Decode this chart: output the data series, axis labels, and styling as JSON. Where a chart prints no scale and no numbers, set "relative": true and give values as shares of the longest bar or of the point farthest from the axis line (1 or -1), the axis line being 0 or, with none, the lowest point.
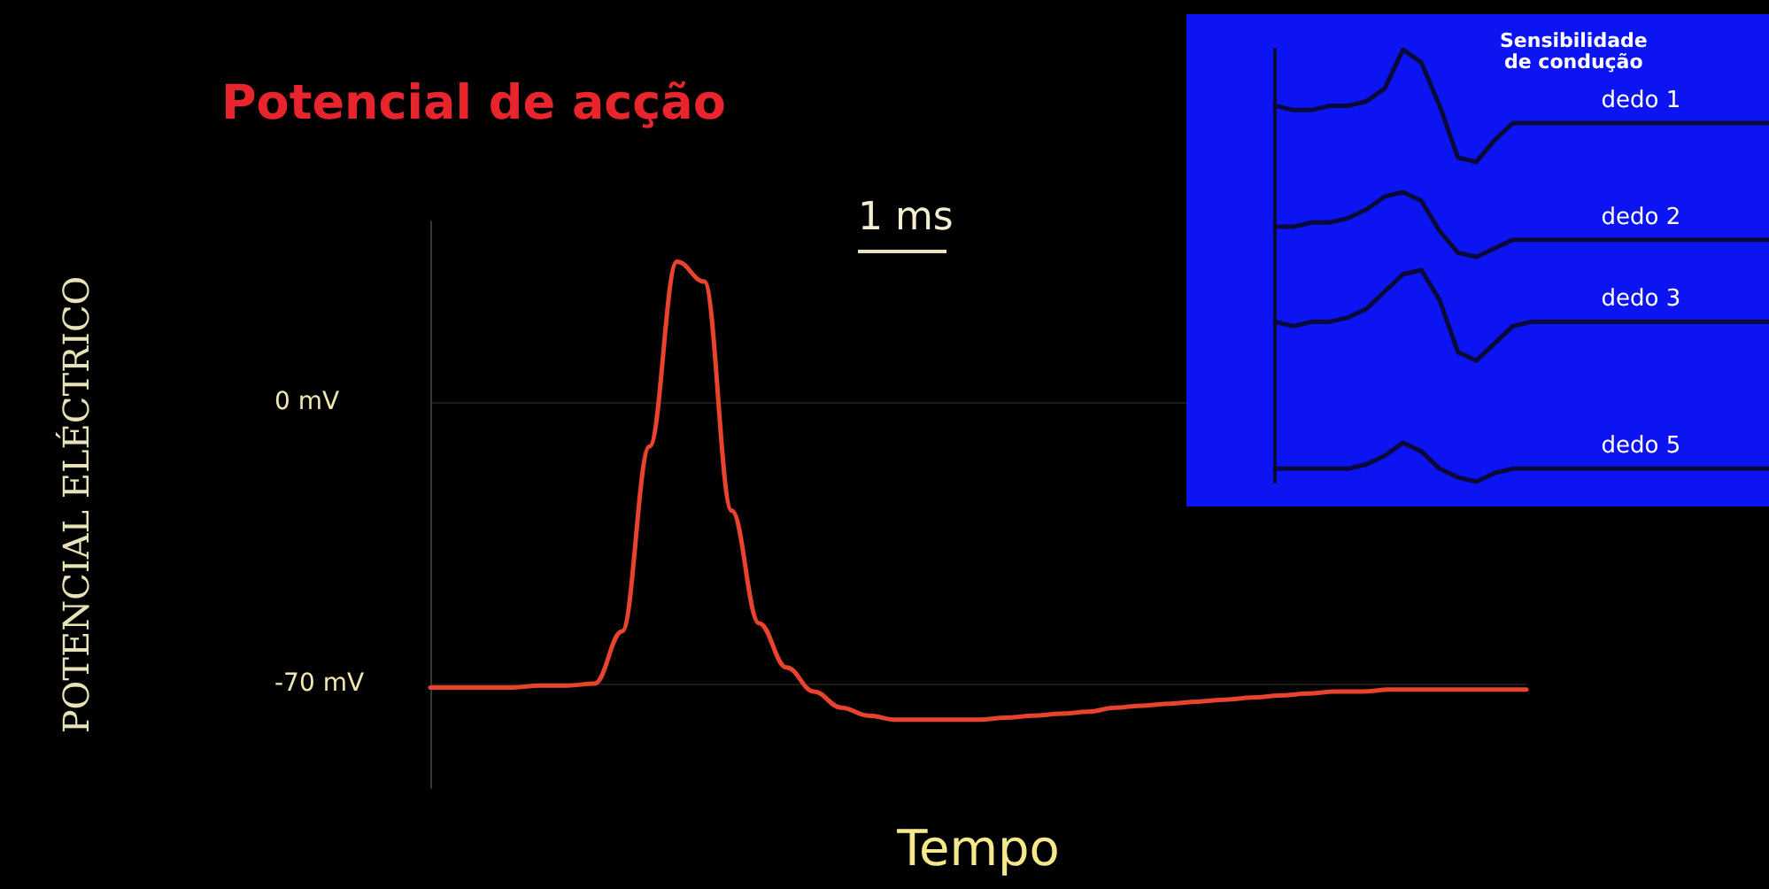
{
  "chart_data": [
    {
      "type": "line",
      "title": "Potencial de acção",
      "xlabel": "Tempo",
      "ylabel": "POTENCIAL ELÉCTRICO",
      "annotations": [
        "1 ms"
      ],
      "categories": [
        null,
        null,
        null,
        null,
        null,
        null,
        null,
        null,
        null,
        null,
        null,
        null,
        null,
        null,
        null,
        null,
        null,
        null,
        null,
        null,
        null,
        null,
        null,
        null,
        null,
        null,
        null,
        null,
        null,
        null,
        null,
        null,
        null,
        null,
        null,
        null,
        null,
        null,
        null,
        null,
        null
      ],
      "series": [
        {
          "color": "#e8432f",
          "values": [
            -71,
            -71,
            -71,
            -71,
            -70.5,
            -70.5,
            -70,
            -57,
            -11,
            35,
            30,
            -27,
            -55,
            -66,
            -72,
            -76,
            -78,
            -79,
            -79,
            -79,
            -79,
            -78.5,
            -78,
            -77.5,
            -77,
            -76,
            -75.5,
            -75,
            -74.5,
            -74,
            -73.5,
            -73,
            -72.5,
            -72,
            -72,
            -71.5,
            -71.5,
            -71.5,
            -71.5,
            -71.5,
            -71.5
          ]
        }
      ],
      "ylim": [
        -96,
        45
      ],
      "yticks": [
        {
          "value": 0,
          "label": "0 mV"
        },
        {
          "value": -70,
          "label": "-70 mV"
        }
      ],
      "grid": "y"
    },
    {
      "type": "line",
      "relative": true,
      "title": "Sensibilidade\nde condução",
      "categories": [
        null,
        null,
        null,
        null,
        null,
        null,
        null,
        null,
        null,
        null,
        null,
        null,
        null,
        null,
        null,
        null,
        null,
        null,
        null,
        null,
        null,
        null,
        null,
        null,
        null,
        null,
        null,
        null
      ],
      "series": [
        {
          "name": "dedo 1",
          "color": "#0a0a3a",
          "values": [
            0.87,
            0.86,
            0.86,
            0.87,
            0.87,
            0.88,
            0.91,
            1,
            0.97,
            0.87,
            0.75,
            0.74,
            0.79,
            0.83,
            0.83,
            0.83,
            0.83,
            0.83,
            0.83,
            0.83,
            0.83,
            0.83,
            0.83,
            0.83,
            0.83,
            0.83,
            0.83,
            0.83
          ]
        },
        {
          "name": "dedo 2",
          "color": "#0a0a3a",
          "values": [
            0.59,
            0.59,
            0.6,
            0.6,
            0.61,
            0.63,
            0.66,
            0.67,
            0.65,
            0.58,
            0.53,
            0.52,
            0.54,
            0.56,
            0.56,
            0.56,
            0.56,
            0.56,
            0.56,
            0.56,
            0.56,
            0.56,
            0.56,
            0.56,
            0.56,
            0.56,
            0.56,
            0.56
          ]
        },
        {
          "name": "dedo 3",
          "color": "#0a0a3a",
          "values": [
            0.37,
            0.36,
            0.37,
            0.37,
            0.38,
            0.4,
            0.44,
            0.48,
            0.49,
            0.42,
            0.3,
            0.28,
            0.32,
            0.36,
            0.37,
            0.37,
            0.37,
            0.37,
            0.37,
            0.37,
            0.37,
            0.37,
            0.37,
            0.37,
            0.37,
            0.37,
            0.37,
            0.37
          ]
        },
        {
          "name": "dedo 5",
          "color": "#0a0a3a",
          "values": [
            0.03,
            0.03,
            0.03,
            0.03,
            0.03,
            0.04,
            0.06,
            0.09,
            0.07,
            0.03,
            0.01,
            0,
            0.02,
            0.03,
            0.03,
            0.03,
            0.03,
            0.03,
            0.03,
            0.03,
            0.03,
            0.03,
            0.03,
            0.03,
            0.03,
            0.03,
            0.03,
            0.03
          ]
        }
      ]
    }
  ]
}
